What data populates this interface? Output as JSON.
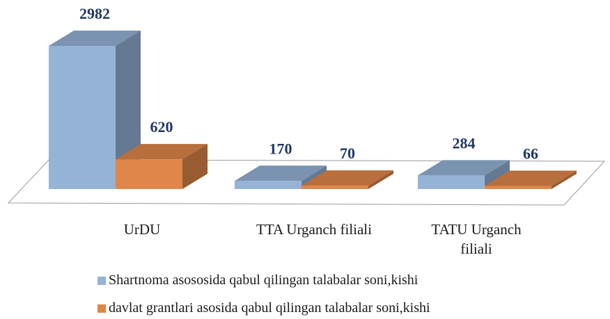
{
  "chart_data": {
    "type": "bar3d",
    "categories": [
      "UrDU",
      "TTA Urganch filiali",
      "TATU Urganch filiali"
    ],
    "series": [
      {
        "name": "Shartnoma asososida qabul qilingan talabalar soni,kishi",
        "color": "#95b3d7",
        "values": [
          2982,
          170,
          284
        ]
      },
      {
        "name": "davlat grantlari asosida qabul qilingan talabalar soni,kishi",
        "color": "#e0864a",
        "values": [
          620,
          70,
          66
        ]
      }
    ]
  }
}
